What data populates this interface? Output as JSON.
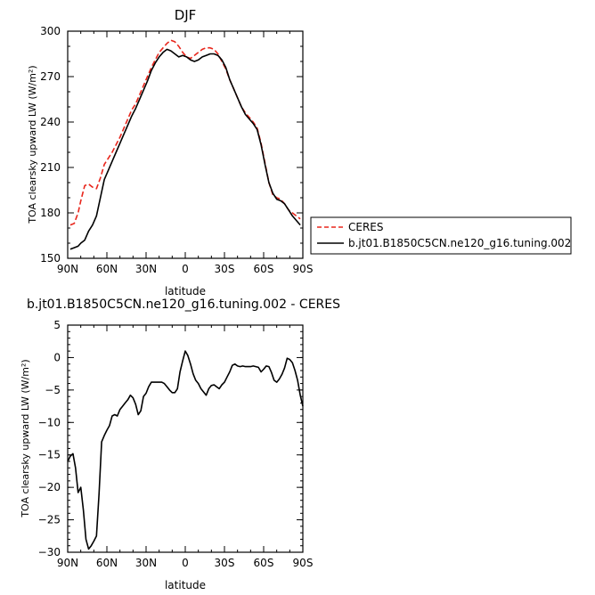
{
  "chart_data": [
    {
      "type": "line",
      "title": "DJF",
      "xlabel": "latitude",
      "ylabel": "TOA clearsky upward LW (W/m²)",
      "xlim": [
        90,
        -90
      ],
      "ylim": [
        150,
        300
      ],
      "x_ticks": [
        {
          "value": 90,
          "label": "90N"
        },
        {
          "value": 60,
          "label": "60N"
        },
        {
          "value": 30,
          "label": "30N"
        },
        {
          "value": 0,
          "label": "0"
        },
        {
          "value": -30,
          "label": "30S"
        },
        {
          "value": -60,
          "label": "60S"
        },
        {
          "value": -90,
          "label": "90S"
        }
      ],
      "y_ticks": [
        150,
        180,
        210,
        240,
        270,
        300
      ],
      "legend": "right",
      "series": [
        {
          "name": "CERES",
          "color": "#e8261c",
          "style": "dashed",
          "x": [
            88,
            85,
            82,
            80,
            77,
            74,
            71,
            68,
            65,
            62,
            59,
            56,
            53,
            50,
            47,
            44,
            41,
            38,
            35,
            32,
            29,
            26,
            23,
            20,
            17,
            14,
            11,
            8,
            5,
            2,
            -1,
            -4,
            -7,
            -10,
            -13,
            -16,
            -19,
            -22,
            -25,
            -28,
            -31,
            -34,
            -37,
            -40,
            -43,
            -46,
            -49,
            -52,
            -55,
            -58,
            -61,
            -64,
            -67,
            -70,
            -73,
            -76,
            -79,
            -82,
            -85,
            -88
          ],
          "values": [
            172,
            173,
            180,
            188,
            198,
            199,
            197,
            196,
            203,
            212,
            216,
            220,
            225,
            230,
            236,
            242,
            248,
            252,
            258,
            264,
            270,
            276,
            281,
            286,
            289,
            292,
            294,
            293,
            290,
            286,
            283,
            282,
            284,
            286,
            288,
            289,
            289,
            288,
            285,
            280,
            275,
            268,
            262,
            256,
            250,
            246,
            243,
            240,
            236,
            226,
            213,
            200,
            192,
            190,
            189,
            186,
            182,
            180,
            178,
            176
          ]
        },
        {
          "name": "b.jt01.B1850C5CN.ne120_g16.tuning.002",
          "color": "#000000",
          "style": "solid",
          "x": [
            88,
            85,
            82,
            80,
            77,
            74,
            71,
            68,
            65,
            62,
            59,
            56,
            53,
            50,
            47,
            44,
            41,
            38,
            35,
            32,
            29,
            26,
            23,
            20,
            17,
            14,
            11,
            8,
            5,
            2,
            -1,
            -4,
            -7,
            -10,
            -13,
            -16,
            -19,
            -22,
            -25,
            -28,
            -31,
            -34,
            -37,
            -40,
            -43,
            -46,
            -49,
            -52,
            -55,
            -58,
            -61,
            -64,
            -67,
            -70,
            -73,
            -76,
            -79,
            -82,
            -85,
            -88
          ],
          "values": [
            156,
            157,
            158,
            160,
            162,
            168,
            172,
            178,
            190,
            202,
            208,
            214,
            220,
            226,
            232,
            238,
            244,
            249,
            255,
            261,
            267,
            274,
            279,
            283,
            286,
            288,
            287,
            285,
            283,
            284,
            283,
            281,
            280,
            281,
            283,
            284,
            285,
            285,
            284,
            281,
            276,
            268,
            262,
            256,
            250,
            245,
            242,
            239,
            235,
            225,
            212,
            200,
            193,
            189,
            188,
            186,
            182,
            178,
            175,
            172
          ]
        }
      ]
    },
    {
      "type": "line",
      "title": "b.jt01.B1850C5CN.ne120_g16.tuning.002 - CERES",
      "xlabel": "latitude",
      "ylabel": "TOA clearsky upward LW (W/m²)",
      "xlim": [
        90,
        -90
      ],
      "ylim": [
        -30,
        5
      ],
      "x_ticks": [
        {
          "value": 90,
          "label": "90N"
        },
        {
          "value": 60,
          "label": "60N"
        },
        {
          "value": 30,
          "label": "30N"
        },
        {
          "value": 0,
          "label": "0"
        },
        {
          "value": -30,
          "label": "30S"
        },
        {
          "value": -60,
          "label": "60S"
        },
        {
          "value": -90,
          "label": "90S"
        }
      ],
      "y_ticks": [
        5,
        0,
        -5,
        -10,
        -15,
        -20,
        -25,
        -30
      ],
      "series": [
        {
          "color": "#000000",
          "style": "solid",
          "x": [
            90,
            88,
            86,
            84,
            82,
            80,
            78,
            76,
            74,
            72,
            70,
            68,
            66,
            64,
            62,
            60,
            58,
            56,
            54,
            52,
            50,
            48,
            46,
            44,
            42,
            40,
            38,
            36,
            34,
            32,
            30,
            28,
            26,
            24,
            22,
            20,
            18,
            16,
            14,
            12,
            10,
            8,
            6,
            4,
            2,
            0,
            -2,
            -4,
            -6,
            -8,
            -10,
            -12,
            -14,
            -16,
            -18,
            -20,
            -22,
            -24,
            -26,
            -28,
            -30,
            -32,
            -34,
            -36,
            -38,
            -40,
            -42,
            -44,
            -46,
            -48,
            -50,
            -52,
            -54,
            -56,
            -58,
            -60,
            -62,
            -64,
            -66,
            -68,
            -70,
            -72,
            -74,
            -76,
            -78,
            -80,
            -82,
            -84,
            -86,
            -88,
            -90
          ],
          "values": [
            -16,
            -15.2,
            -14.8,
            -17,
            -20.8,
            -20,
            -23.5,
            -28,
            -29.5,
            -29,
            -28.3,
            -27.5,
            -21,
            -13,
            -12,
            -11.2,
            -10.5,
            -9,
            -8.8,
            -9,
            -8,
            -7.5,
            -7,
            -6.5,
            -5.8,
            -6.2,
            -7.2,
            -8.8,
            -8.2,
            -6,
            -5.5,
            -4.5,
            -3.8,
            -3.8,
            -3.8,
            -3.8,
            -3.8,
            -4,
            -4.5,
            -5,
            -5.4,
            -5.4,
            -4.8,
            -2.2,
            -0.5,
            1,
            0.3,
            -1,
            -2.5,
            -3.5,
            -4,
            -4.8,
            -5.3,
            -5.8,
            -4.8,
            -4.3,
            -4.2,
            -4.5,
            -4.8,
            -4.2,
            -3.8,
            -3,
            -2.2,
            -1.2,
            -1,
            -1.3,
            -1.4,
            -1.3,
            -1.4,
            -1.4,
            -1.4,
            -1.3,
            -1.4,
            -1.5,
            -2.2,
            -1.8,
            -1.3,
            -1.4,
            -2.3,
            -3.5,
            -3.8,
            -3.3,
            -2.6,
            -1.6,
            -0.1,
            -0.3,
            -0.8,
            -2,
            -3.5,
            -5.8,
            -7.5
          ]
        }
      ]
    }
  ]
}
